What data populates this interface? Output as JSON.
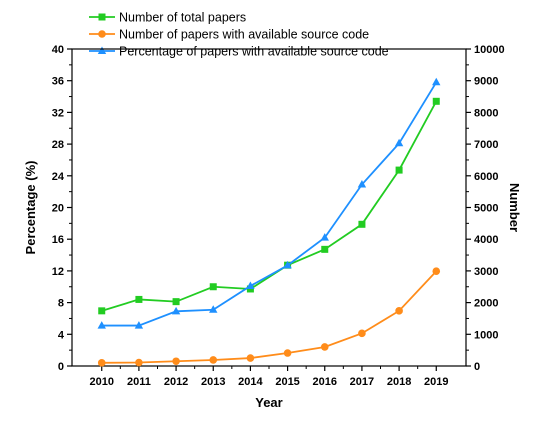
{
  "chart_data": {
    "type": "line",
    "x": [
      2010,
      2011,
      2012,
      2013,
      2014,
      2015,
      2016,
      2017,
      2018,
      2019
    ],
    "xlabel": "Year",
    "ylabel_left": "Percentage (%)",
    "ylabel_right": "Number",
    "ylim_left": [
      0,
      40
    ],
    "ylim_right": [
      0,
      10000
    ],
    "yticks_left": [
      0,
      4,
      8,
      12,
      16,
      20,
      24,
      28,
      32,
      36,
      40
    ],
    "yticks_right": [
      0,
      1000,
      2000,
      3000,
      4000,
      5000,
      6000,
      7000,
      8000,
      9000,
      10000
    ],
    "grid": false,
    "legend_position": "top-left",
    "series": [
      {
        "name": "Number of total papers",
        "axis": "right",
        "color": "#22cc22",
        "marker": "square",
        "values": [
          1740,
          2100,
          2030,
          2500,
          2430,
          3180,
          3680,
          4470,
          6180,
          8350
        ]
      },
      {
        "name": "Number of papers with available source code",
        "axis": "right",
        "color": "#ff8c1a",
        "marker": "circle",
        "values": [
          100,
          110,
          150,
          190,
          250,
          410,
          600,
          1030,
          1740,
          2990
        ]
      },
      {
        "name": "Percentage of papers with available source code",
        "axis": "left",
        "color": "#1e90ff",
        "marker": "triangle",
        "values": [
          5.1,
          5.1,
          6.9,
          7.1,
          10.1,
          12.7,
          16.2,
          22.9,
          28.1,
          35.8
        ]
      }
    ]
  }
}
